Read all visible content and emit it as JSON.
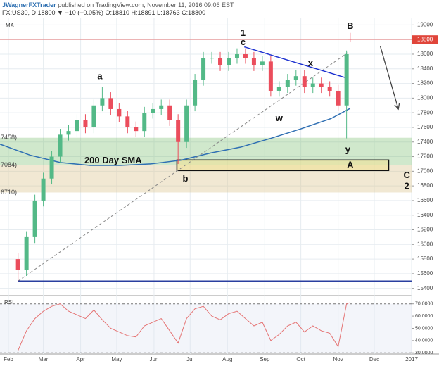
{
  "header": {
    "author": "JWagnerFXTrader",
    "published": "published on TradingView.com, November 11, 2016 09:06 EST",
    "symbol": "FX:US30, D",
    "quote": "18800 ▼ −10 (−0.05%) O:18810 H:18891 L:18763 C:18800"
  },
  "chart_data": [
    {
      "type": "candlestick",
      "title": "MA",
      "x": [
        40,
        47,
        54,
        61,
        68,
        75,
        82,
        89,
        96,
        103,
        110,
        117,
        124,
        131,
        138,
        145,
        152,
        159,
        166,
        173,
        180,
        187,
        194,
        201,
        208,
        215,
        222,
        229,
        236,
        243,
        250,
        257,
        264,
        271,
        278,
        285,
        292,
        299,
        306,
        313,
        316
      ],
      "open": [
        15800,
        15650,
        16100,
        16600,
        16900,
        17200,
        17500,
        17550,
        17700,
        17600,
        17900,
        18000,
        17850,
        17750,
        17600,
        17550,
        17800,
        17850,
        17900,
        17700,
        17400,
        17900,
        18250,
        18550,
        18550,
        18450,
        18550,
        18600,
        18550,
        18450,
        18500,
        18100,
        18150,
        18250,
        18300,
        18150,
        18200,
        18150,
        18100,
        17900,
        18810
      ],
      "high": [
        15880,
        16180,
        16680,
        16980,
        17280,
        17580,
        17630,
        17780,
        17780,
        17980,
        18150,
        18080,
        17930,
        17830,
        17680,
        17880,
        17930,
        17980,
        17980,
        17780,
        17980,
        18330,
        18630,
        18630,
        18630,
        18630,
        18680,
        18680,
        18630,
        18580,
        18580,
        18230,
        18330,
        18380,
        18380,
        18280,
        18280,
        18230,
        18180,
        18650,
        18891
      ],
      "low": [
        15500,
        15570,
        16020,
        16520,
        16820,
        17120,
        17420,
        17470,
        17520,
        17520,
        17820,
        17770,
        17670,
        17520,
        17470,
        17470,
        17720,
        17770,
        17620,
        17100,
        17320,
        17820,
        18170,
        18470,
        18370,
        18370,
        18470,
        18470,
        18370,
        18370,
        18020,
        18020,
        18070,
        18170,
        18070,
        18070,
        18070,
        18020,
        17820,
        17450,
        18763
      ],
      "close": [
        15650,
        16100,
        16600,
        16900,
        17200,
        17500,
        17550,
        17700,
        17600,
        17900,
        18000,
        17850,
        17750,
        17600,
        17550,
        17800,
        17850,
        17900,
        17700,
        17400,
        17900,
        18250,
        18550,
        18550,
        18450,
        18550,
        18600,
        18550,
        18450,
        18500,
        18100,
        18150,
        18250,
        18300,
        18150,
        18200,
        18150,
        18100,
        17900,
        18600,
        18800
      ],
      "up_color": "#53b987",
      "down_color": "#eb4d5c",
      "sma": {
        "name": "200 Day SMA",
        "color": "#2f6fb3",
        "x": [
          25,
          50,
          75,
          100,
          125,
          150,
          175,
          200,
          225,
          250,
          275,
          300,
          316
        ],
        "values": [
          17370,
          17220,
          17120,
          17080,
          17080,
          17100,
          17150,
          17250,
          17330,
          17450,
          17580,
          17720,
          17860
        ],
        "label_at": [
          119,
          17140
        ]
      },
      "last_price": 18800,
      "zones": [
        {
          "top": 17458,
          "bottom": 17084,
          "color": "rgba(120,190,110,0.35)"
        },
        {
          "top": 17084,
          "bottom": 16710,
          "color": "rgba(215,190,130,0.35)"
        }
      ],
      "level_labels": [
        {
          "value": 17458,
          "label": "7458)",
          "color": "#333"
        },
        {
          "value": 17084,
          "label": "7084)",
          "color": "#333"
        },
        {
          "value": 16710,
          "label": "6710)",
          "color": "#c07a20"
        }
      ],
      "box": {
        "x": [
          172,
          348
        ],
        "top": 17154,
        "bottom": 17010,
        "color": "rgba(240,225,150,0.6)"
      },
      "trendlines": [
        {
          "x": [
            40,
            314
          ],
          "values": [
            15500,
            18620
          ],
          "color": "#888",
          "dashed": true
        },
        {
          "x": [
            228,
            314
          ],
          "values": [
            18700,
            18270
          ],
          "color": "#1a2fd0",
          "dashed": false
        },
        {
          "x": [
            40,
            367
          ],
          "values": [
            15500,
            15500
          ],
          "color": "#2a3fa0",
          "dashed": false
        }
      ],
      "arrow": {
        "x": [
          341,
          356
        ],
        "values": [
          18710,
          17850
        ],
        "color": "#444"
      },
      "annotations": [
        {
          "text": "1",
          "x": 227,
          "y": 18885
        },
        {
          "text": "c",
          "x": 227,
          "y": 18760
        },
        {
          "text": "a",
          "x": 108,
          "y": 18290
        },
        {
          "text": "x",
          "x": 283,
          "y": 18470
        },
        {
          "text": "w",
          "x": 257,
          "y": 17720
        },
        {
          "text": "B",
          "x": 316,
          "y": 18980
        },
        {
          "text": "y",
          "x": 314,
          "y": 17290
        },
        {
          "text": "b",
          "x": 179,
          "y": 16890
        },
        {
          "text": "A",
          "x": 316,
          "y": 17080
        },
        {
          "text": "C",
          "x": 363,
          "y": 16940
        },
        {
          "text": "2",
          "x": 363,
          "y": 16790
        }
      ],
      "xlim": [
        25,
        367
      ],
      "ylim": [
        15320,
        19100
      ],
      "xticks": [
        {
          "value": 32,
          "label": "Feb"
        },
        {
          "value": 61,
          "label": "Mar"
        },
        {
          "value": 92,
          "label": "Apr"
        },
        {
          "value": 122,
          "label": "May"
        },
        {
          "value": 153,
          "label": "Jun"
        },
        {
          "value": 183,
          "label": "Jul"
        },
        {
          "value": 214,
          "label": "Aug"
        },
        {
          "value": 245,
          "label": "Sep"
        },
        {
          "value": 275,
          "label": "Oct"
        },
        {
          "value": 306,
          "label": "Nov"
        },
        {
          "value": 336,
          "label": "Dec"
        },
        {
          "value": 367,
          "label": "2017"
        }
      ],
      "yticks": [
        15400,
        15600,
        15800,
        16000,
        16200,
        16400,
        16600,
        16800,
        17000,
        17200,
        17400,
        17600,
        17800,
        18000,
        18200,
        18400,
        18600,
        18800,
        19000
      ],
      "grid": true
    },
    {
      "type": "line",
      "title": "RSI",
      "color": "#e57373",
      "x": [
        40,
        47,
        54,
        61,
        68,
        75,
        82,
        89,
        96,
        103,
        110,
        117,
        124,
        131,
        138,
        145,
        152,
        159,
        166,
        173,
        180,
        187,
        194,
        201,
        208,
        215,
        222,
        229,
        236,
        243,
        250,
        257,
        264,
        271,
        278,
        285,
        292,
        299,
        306,
        313,
        316
      ],
      "values": [
        32,
        48,
        58,
        64,
        68,
        70,
        64,
        61,
        58,
        65,
        57,
        50,
        47,
        44,
        43,
        52,
        55,
        58,
        48,
        38,
        58,
        66,
        68,
        60,
        57,
        62,
        64,
        58,
        52,
        55,
        40,
        45,
        52,
        55,
        47,
        52,
        48,
        46,
        35,
        70,
        71
      ],
      "band": [
        30,
        70
      ],
      "xlim": [
        25,
        367
      ],
      "ylim": [
        29,
        75
      ],
      "yticks": [
        {
          "value": 30,
          "label": "30.0000"
        },
        {
          "value": 40,
          "label": "40.0000"
        },
        {
          "value": 50,
          "label": "50.0000"
        },
        {
          "value": 60,
          "label": "60.0000"
        },
        {
          "value": 70,
          "label": "70.0000"
        }
      ]
    }
  ]
}
